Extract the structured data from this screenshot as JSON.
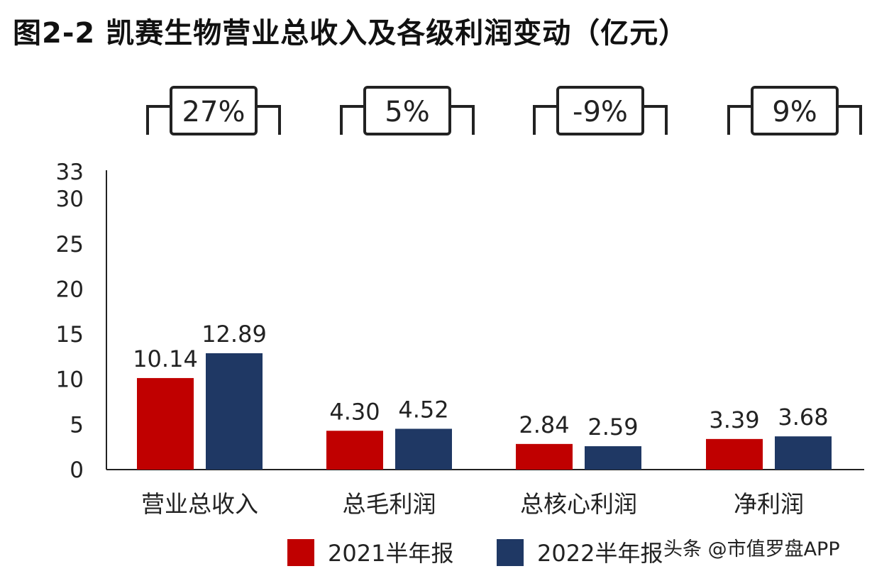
{
  "chart_data": {
    "type": "bar",
    "title": "图2-2 凯赛生物营业总收入及各级利润变动（亿元）",
    "categories": [
      "营业总收入",
      "总毛利润",
      "总核心利润",
      "净利润"
    ],
    "series": [
      {
        "name": "2021半年报",
        "values": [
          10.14,
          4.3,
          2.84,
          3.39
        ],
        "labels": [
          "10.14",
          "4.30",
          "2.84",
          "3.39"
        ],
        "color": "#c00000"
      },
      {
        "name": "2022半年报",
        "values": [
          12.89,
          4.52,
          2.59,
          3.68
        ],
        "labels": [
          "12.89",
          "4.52",
          "2.59",
          "3.68"
        ],
        "color": "#1f3864"
      }
    ],
    "growth_labels": [
      "27%",
      "5%",
      "-9%",
      "9%"
    ],
    "yticks": [
      "0",
      "5",
      "10",
      "15",
      "20",
      "25",
      "30",
      "33"
    ],
    "ylim": [
      0,
      33
    ],
    "xlabel": "",
    "ylabel": "",
    "grid": false,
    "legend": "bottom"
  },
  "watermark": "头条 @市值罗盘APP"
}
